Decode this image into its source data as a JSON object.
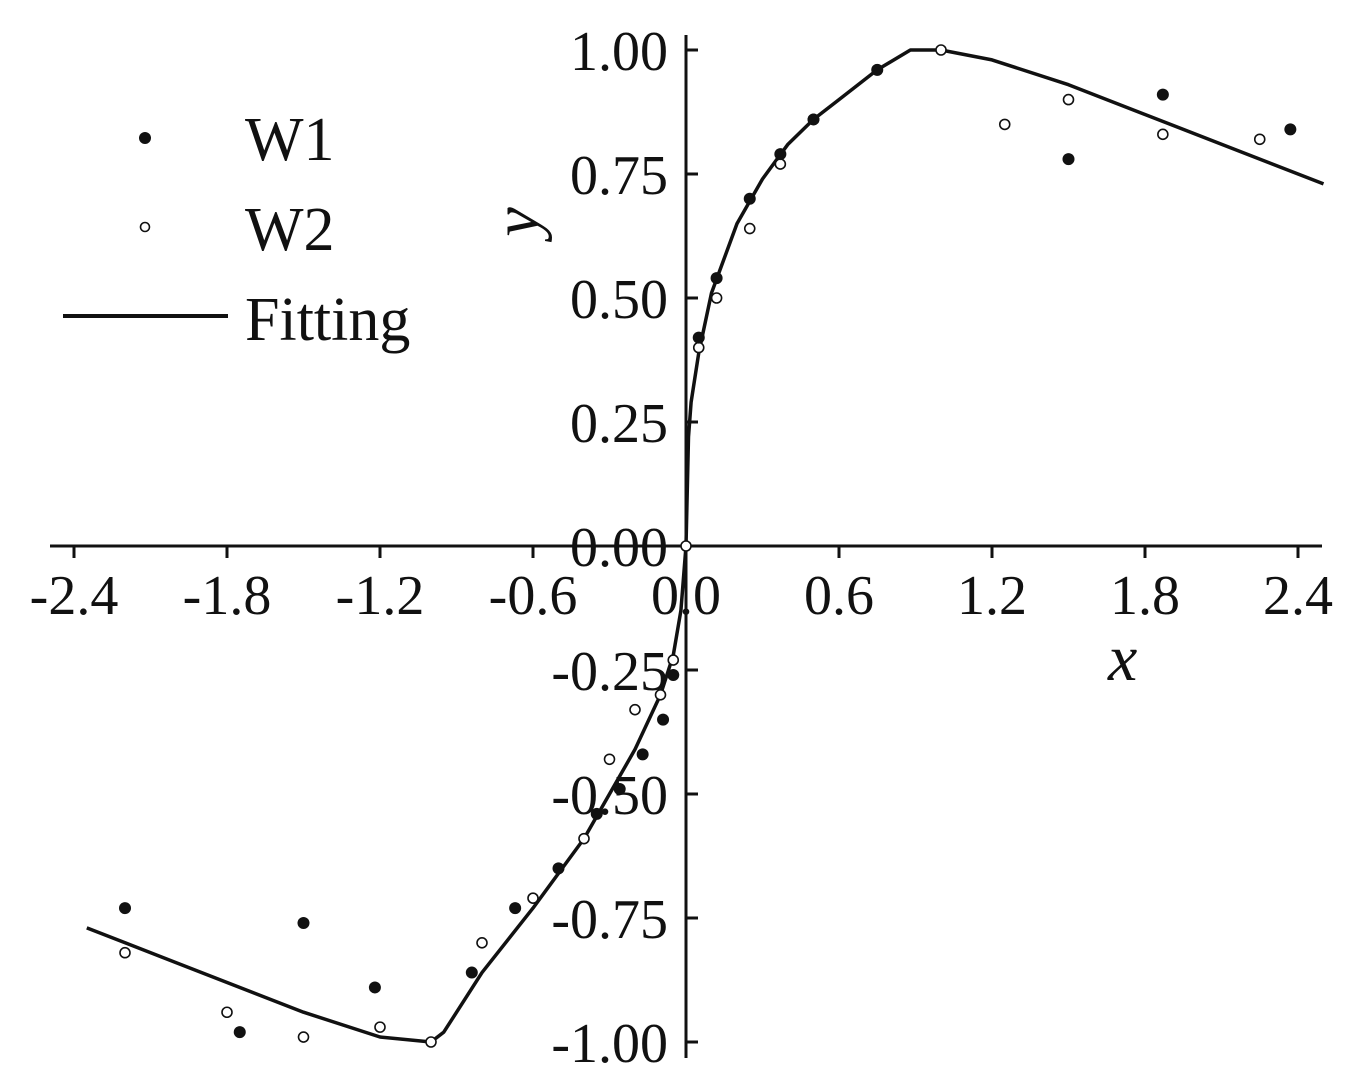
{
  "chart_data": {
    "type": "scatter",
    "xlabel": "x",
    "ylabel": "y",
    "xlim": [
      -2.5,
      2.5
    ],
    "ylim": [
      -1.0,
      1.0
    ],
    "x_ticks": [
      -2.4,
      -1.8,
      -1.2,
      -0.6,
      0.0,
      0.6,
      1.2,
      1.8,
      2.4
    ],
    "x_tick_labels": [
      "-2.4",
      "-1.8",
      "-1.2",
      "-0.6",
      "0.0",
      "0.6",
      "1.2",
      "1.8",
      "2.4"
    ],
    "y_ticks": [
      -1.0,
      -0.75,
      -0.5,
      -0.25,
      0.0,
      0.25,
      0.5,
      0.75,
      1.0
    ],
    "y_tick_labels": [
      "-1.00",
      "-0.75",
      "-0.50",
      "-0.25",
      "0.00",
      "0.25",
      "0.50",
      "0.75",
      "1.00"
    ],
    "legend_position": "top-left",
    "grid": false,
    "series": [
      {
        "name": "W1",
        "marker": "filled-circle",
        "color": "#111111",
        "points": [
          [
            -2.2,
            -0.73
          ],
          [
            -1.75,
            -0.98
          ],
          [
            -1.5,
            -0.76
          ],
          [
            -1.22,
            -0.89
          ],
          [
            -0.84,
            -0.86
          ],
          [
            -0.67,
            -0.73
          ],
          [
            -0.5,
            -0.65
          ],
          [
            -0.35,
            -0.54
          ],
          [
            -0.26,
            -0.49
          ],
          [
            -0.17,
            -0.42
          ],
          [
            -0.09,
            -0.35
          ],
          [
            -0.05,
            -0.26
          ],
          [
            0.05,
            0.42
          ],
          [
            0.12,
            0.54
          ],
          [
            0.25,
            0.7
          ],
          [
            0.37,
            0.79
          ],
          [
            0.5,
            0.86
          ],
          [
            0.75,
            0.96
          ],
          [
            1.5,
            0.78
          ],
          [
            1.87,
            0.91
          ],
          [
            2.37,
            0.84
          ]
        ]
      },
      {
        "name": "W2",
        "marker": "open-circle",
        "color": "#111111",
        "points": [
          [
            -2.2,
            -0.82
          ],
          [
            -1.8,
            -0.94
          ],
          [
            -1.5,
            -0.99
          ],
          [
            -1.2,
            -0.97
          ],
          [
            -1.0,
            -1.0
          ],
          [
            -0.8,
            -0.8
          ],
          [
            -0.6,
            -0.71
          ],
          [
            -0.4,
            -0.59
          ],
          [
            -0.3,
            -0.43
          ],
          [
            -0.2,
            -0.33
          ],
          [
            -0.1,
            -0.3
          ],
          [
            -0.05,
            -0.23
          ],
          [
            0.0,
            0.0
          ],
          [
            0.05,
            0.4
          ],
          [
            0.12,
            0.5
          ],
          [
            0.25,
            0.64
          ],
          [
            0.37,
            0.77
          ],
          [
            0.5,
            0.86
          ],
          [
            0.75,
            0.96
          ],
          [
            1.0,
            1.0
          ],
          [
            1.25,
            0.85
          ],
          [
            1.5,
            0.9
          ],
          [
            1.87,
            0.83
          ],
          [
            2.25,
            0.82
          ]
        ]
      },
      {
        "name": "Fitting",
        "type": "line",
        "color": "#111111",
        "points": [
          [
            -2.35,
            -0.77
          ],
          [
            -2.0,
            -0.84
          ],
          [
            -1.5,
            -0.94
          ],
          [
            -1.2,
            -0.99
          ],
          [
            -1.0,
            -1.0
          ],
          [
            -0.95,
            -0.98
          ],
          [
            -0.8,
            -0.86
          ],
          [
            -0.6,
            -0.73
          ],
          [
            -0.4,
            -0.59
          ],
          [
            -0.3,
            -0.5
          ],
          [
            -0.2,
            -0.41
          ],
          [
            -0.1,
            -0.3
          ],
          [
            -0.05,
            -0.22
          ],
          [
            -0.02,
            -0.13
          ],
          [
            0.0,
            0.0
          ],
          [
            0.01,
            0.22
          ],
          [
            0.02,
            0.29
          ],
          [
            0.05,
            0.39
          ],
          [
            0.1,
            0.51
          ],
          [
            0.2,
            0.65
          ],
          [
            0.3,
            0.74
          ],
          [
            0.4,
            0.81
          ],
          [
            0.5,
            0.86
          ],
          [
            0.6,
            0.9
          ],
          [
            0.75,
            0.96
          ],
          [
            0.88,
            1.0
          ],
          [
            1.0,
            1.0
          ],
          [
            1.2,
            0.98
          ],
          [
            1.5,
            0.93
          ],
          [
            1.8,
            0.87
          ],
          [
            2.1,
            0.81
          ],
          [
            2.5,
            0.73
          ]
        ]
      }
    ]
  }
}
